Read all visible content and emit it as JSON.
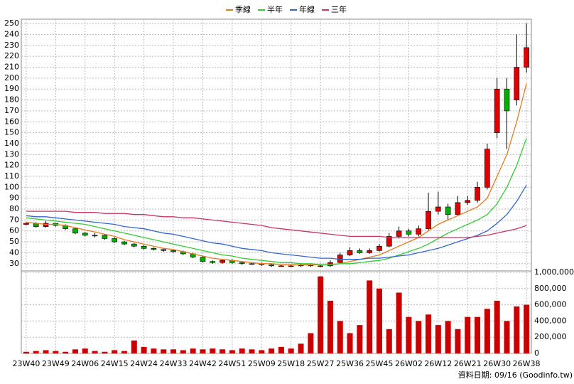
{
  "chart_data": {
    "type": "candlestick",
    "categories": [
      "23W40",
      null,
      null,
      "23W49",
      null,
      null,
      "24W06",
      null,
      null,
      "24W15",
      null,
      null,
      "24W24",
      null,
      null,
      "24W33",
      null,
      null,
      "24W42",
      null,
      null,
      "24W51",
      null,
      null,
      "25W09",
      null,
      null,
      "25W18",
      null,
      null,
      "25W27",
      null,
      null,
      "25W36",
      null,
      null,
      "25W45",
      null,
      null,
      "26W02",
      null,
      null,
      "26W12",
      null,
      null,
      "26W21",
      null,
      null,
      "26W30",
      null,
      null,
      "26W38"
    ],
    "open": [
      66,
      67,
      64,
      67,
      65,
      62,
      58,
      56,
      56,
      53,
      50,
      48,
      46,
      44,
      43,
      42,
      41,
      39,
      36,
      32,
      31,
      33,
      31,
      30,
      30,
      29,
      28,
      28,
      28,
      29,
      28,
      28,
      31,
      38,
      42,
      40,
      42,
      46,
      55,
      60,
      57,
      62,
      78,
      82,
      75,
      86,
      88,
      100,
      150,
      190,
      180,
      210
    ],
    "high": [
      68,
      68,
      69,
      67,
      66,
      63,
      59,
      58,
      57,
      54,
      51,
      49,
      47,
      45,
      44,
      43,
      42,
      40,
      37,
      33,
      34,
      34,
      32,
      31,
      31,
      30,
      29,
      29,
      30,
      30,
      29,
      33,
      40,
      45,
      44,
      44,
      48,
      58,
      64,
      62,
      65,
      95,
      96,
      85,
      92,
      92,
      105,
      140,
      200,
      200,
      240,
      250
    ],
    "low": [
      65,
      63,
      63,
      64,
      61,
      57,
      55,
      54,
      52,
      49,
      47,
      45,
      43,
      42,
      41,
      40,
      38,
      35,
      31,
      30,
      30,
      30,
      29,
      29,
      28,
      27,
      27,
      27,
      27,
      27,
      27,
      27,
      30,
      37,
      39,
      39,
      41,
      45,
      53,
      55,
      55,
      60,
      75,
      70,
      74,
      84,
      86,
      98,
      145,
      135,
      175,
      205
    ],
    "close": [
      67,
      64,
      67,
      65,
      62,
      58,
      56,
      56,
      53,
      50,
      48,
      46,
      44,
      43,
      42,
      41,
      39,
      36,
      32,
      31,
      33,
      31,
      30,
      30,
      29,
      28,
      28,
      28,
      29,
      28,
      28,
      31,
      38,
      42,
      40,
      42,
      46,
      55,
      60,
      57,
      62,
      78,
      82,
      75,
      86,
      88,
      100,
      135,
      190,
      170,
      210,
      228
    ],
    "volume": [
      20000,
      30000,
      40000,
      30000,
      20000,
      50000,
      60000,
      30000,
      20000,
      40000,
      30000,
      160000,
      80000,
      60000,
      50000,
      50000,
      40000,
      60000,
      50000,
      60000,
      50000,
      40000,
      60000,
      50000,
      40000,
      60000,
      80000,
      60000,
      120000,
      250000,
      950000,
      650000,
      400000,
      250000,
      350000,
      900000,
      800000,
      300000,
      750000,
      450000,
      400000,
      480000,
      350000,
      400000,
      300000,
      450000,
      450000,
      550000,
      650000,
      400000,
      580000,
      600000
    ],
    "up_color": "#e00000",
    "down_color": "#00b000",
    "volume_color": "#cc0000",
    "series": [
      {
        "name": "季線",
        "color": "#e87a1e",
        "values": [
          68,
          67,
          66,
          66,
          65,
          63,
          61,
          59,
          57,
          55,
          52,
          50,
          48,
          46,
          44,
          43,
          41,
          39,
          37,
          35,
          34,
          33,
          32,
          31,
          30,
          30,
          29,
          29,
          29,
          29,
          29,
          29,
          30,
          32,
          34,
          36,
          38,
          42,
          46,
          50,
          54,
          60,
          66,
          70,
          74,
          78,
          82,
          90,
          110,
          130,
          160,
          195
        ]
      },
      {
        "name": "半年",
        "color": "#33cc33",
        "values": [
          72,
          71,
          70,
          69,
          68,
          67,
          66,
          64,
          62,
          60,
          58,
          56,
          54,
          52,
          50,
          48,
          46,
          44,
          42,
          40,
          38,
          37,
          35,
          34,
          33,
          32,
          31,
          31,
          30,
          30,
          29,
          29,
          30,
          30,
          31,
          32,
          33,
          35,
          38,
          41,
          44,
          48,
          53,
          58,
          62,
          66,
          70,
          75,
          85,
          100,
          120,
          145
        ]
      },
      {
        "name": "年線",
        "color": "#3366cc",
        "values": [
          74,
          73,
          73,
          72,
          71,
          70,
          69,
          68,
          67,
          66,
          64,
          63,
          62,
          60,
          58,
          57,
          55,
          53,
          51,
          49,
          48,
          46,
          44,
          43,
          42,
          40,
          39,
          38,
          37,
          36,
          35,
          35,
          34,
          34,
          34,
          35,
          35,
          36,
          37,
          38,
          40,
          42,
          44,
          47,
          50,
          53,
          56,
          60,
          67,
          75,
          87,
          102
        ]
      },
      {
        "name": "三年",
        "color": "#cc3366",
        "values": [
          78,
          78,
          78,
          78,
          78,
          77,
          77,
          77,
          76,
          76,
          76,
          75,
          75,
          74,
          73,
          73,
          72,
          72,
          71,
          70,
          69,
          68,
          67,
          66,
          65,
          63,
          62,
          61,
          60,
          59,
          58,
          57,
          56,
          55,
          55,
          55,
          55,
          54,
          54,
          54,
          54,
          54,
          54,
          54,
          54,
          54,
          55,
          56,
          58,
          60,
          62,
          65
        ]
      }
    ],
    "ylim": [
      24,
      254
    ],
    "yticks": [
      30,
      40,
      50,
      60,
      70,
      80,
      90,
      100,
      110,
      120,
      130,
      140,
      150,
      160,
      170,
      180,
      190,
      200,
      210,
      220,
      230,
      240,
      250
    ],
    "y2lim": [
      0,
      1000000
    ],
    "y2ticks": [
      0,
      {
        "value": 200000,
        "label": "200,000"
      },
      {
        "value": 400000,
        "label": "400,000"
      },
      {
        "value": 600000,
        "label": "600,000"
      },
      {
        "value": 800000,
        "label": "800,000"
      },
      {
        "value": 1000000,
        "label": "1,000,000"
      }
    ],
    "grid": true,
    "legend": "top",
    "footer": "資料日期: 09/16 (Goodinfo.tw)"
  }
}
